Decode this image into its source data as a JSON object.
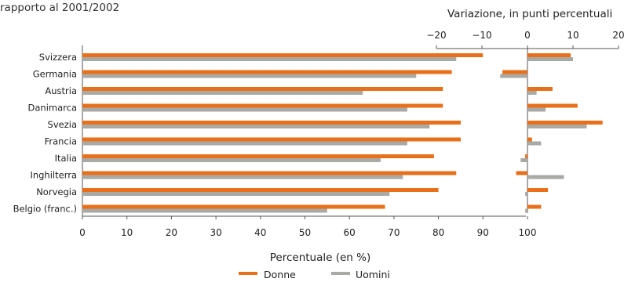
{
  "header": {
    "subtitle": "rapporto al 2001/2002",
    "right_title": "Variazione, in punti percentuali"
  },
  "chart_data": [
    {
      "type": "bar",
      "orientation": "horizontal",
      "xlabel": "Percentuale (en %)",
      "xlim": [
        0,
        100
      ],
      "xticks": [
        0,
        10,
        20,
        30,
        40,
        50,
        60,
        70,
        80,
        90,
        100
      ],
      "grid": false,
      "categories": [
        "Svizzera",
        "Germania",
        "Austria",
        "Danimarca",
        "Svezia",
        "Francia",
        "Italia",
        "Inghilterra",
        "Norvegia",
        "Belgio (franc.)"
      ],
      "series": [
        {
          "name": "Donne",
          "color": "#e8701a",
          "values": [
            90,
            83,
            81,
            81,
            85,
            85,
            79,
            84,
            80,
            68
          ]
        },
        {
          "name": "Uomini",
          "color": "#a9aaa5",
          "values": [
            84,
            75,
            63,
            73,
            78,
            73,
            67,
            72,
            69,
            55
          ]
        }
      ]
    },
    {
      "type": "bar",
      "orientation": "horizontal",
      "title": "Variazione, in punti percentuali",
      "xlim": [
        -25,
        20
      ],
      "xticks": [
        -20,
        -10,
        0,
        10,
        20
      ],
      "grid": false,
      "categories": [
        "Svizzera",
        "Germania",
        "Austria",
        "Danimarca",
        "Svezia",
        "Francia",
        "Italia",
        "Inghilterra",
        "Norvegia",
        "Belgio (franc.)"
      ],
      "series": [
        {
          "name": "Donne",
          "color": "#e8701a",
          "values": [
            9.5,
            -5.5,
            5.5,
            11,
            16.5,
            1,
            -0.5,
            -2.5,
            4.5,
            3
          ]
        },
        {
          "name": "Uomini",
          "color": "#a9aaa5",
          "values": [
            10,
            -6,
            2,
            4,
            13,
            3,
            -1.5,
            8,
            -0.5,
            -0.5
          ]
        }
      ]
    }
  ],
  "legend": [
    {
      "label": "Donne",
      "color": "#e8701a"
    },
    {
      "label": "Uomini",
      "color": "#a9aaa5"
    }
  ]
}
